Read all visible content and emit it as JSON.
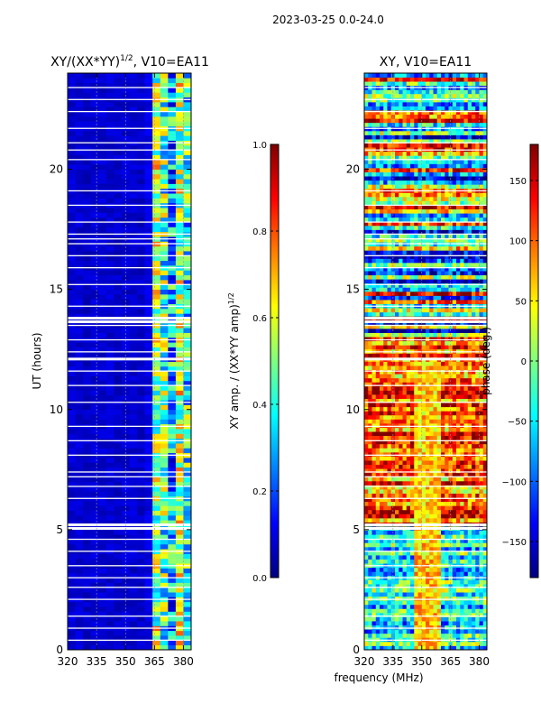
{
  "figure": {
    "suptitle": "2023-03-25 0.0-24.0",
    "xlabel": "frequency (MHz)"
  },
  "colors": {
    "jet": [
      "#00007f",
      "#0000ff",
      "#007fff",
      "#00ffff",
      "#7fff7f",
      "#ffff00",
      "#ff7f00",
      "#ff0000",
      "#7f0000"
    ],
    "gap": "#ffffff",
    "grid": "#9a9a9a"
  },
  "chart_data": [
    {
      "type": "heatmap",
      "name": "amplitude-ratio",
      "title_main": "XY/(XX*YY)",
      "title_sup": "1/2",
      "title_tail": ", V10=EA11",
      "xlabel": "",
      "ylabel": "UT (hours)",
      "xlim": [
        320,
        384
      ],
      "ylim": [
        0,
        24
      ],
      "x_ticks": [
        320,
        335,
        350,
        365,
        380
      ],
      "y_ticks": [
        0,
        5,
        10,
        15,
        20
      ],
      "band_edges_mhz": [
        320,
        324,
        328,
        332,
        336,
        340,
        344,
        348,
        352,
        356,
        360,
        364,
        368,
        372,
        376,
        380,
        384
      ],
      "band_levels": [
        0.08,
        0.08,
        0.07,
        0.08,
        0.08,
        0.08,
        0.07,
        0.08,
        0.08,
        0.07,
        0.1,
        0.55,
        0.45,
        0.3,
        0.55,
        0.4
      ],
      "colorbar": {
        "label_main": "XY amp. / (XX*YY amp)",
        "label_sup": "1/2",
        "range": [
          0.0,
          1.0
        ],
        "ticks": [
          "0.0",
          "0.2",
          "0.4",
          "0.6",
          "0.8",
          "1.0"
        ]
      }
    },
    {
      "type": "heatmap",
      "name": "phase",
      "title": "XY, V10=EA11",
      "xlabel": "frequency (MHz)",
      "ylabel": "",
      "xlim": [
        320,
        384
      ],
      "ylim": [
        0,
        24
      ],
      "x_ticks": [
        320,
        335,
        350,
        365,
        380
      ],
      "y_ticks": [
        0,
        5,
        10,
        15,
        20
      ],
      "colorbar": {
        "label": "phase (deg.)",
        "range": [
          -180,
          180
        ],
        "ticks": [
          "−150",
          "−100",
          "−50",
          "0",
          "50",
          "100",
          "150"
        ]
      }
    }
  ]
}
